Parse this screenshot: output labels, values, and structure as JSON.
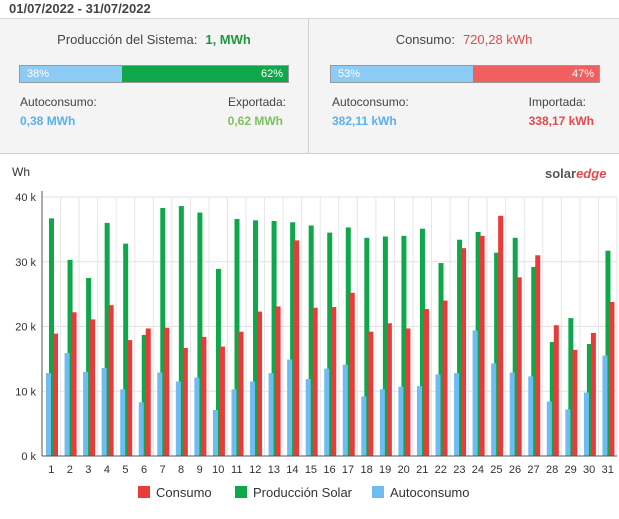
{
  "date_range": "01/07/2022 - 31/07/2022",
  "production": {
    "title": "Producción del Sistema:",
    "value": "1, MWh",
    "bar_left_label": "38%",
    "bar_right_label": "62%",
    "bar_left_fraction": 0.38,
    "left_label": "Autoconsumo:",
    "left_value": "0,38 MWh",
    "right_label": "Exportada:",
    "right_value": "0,62 MWh"
  },
  "consumption": {
    "title": "Consumo:",
    "value": "720,28 kWh",
    "bar_left_label": "53%",
    "bar_right_label": "47%",
    "bar_left_fraction": 0.53,
    "left_label": "Autoconsumo:",
    "left_value": "382,11 kWh",
    "right_label": "Importada:",
    "right_value": "338,17 kWh"
  },
  "logo": {
    "part1": "solar",
    "part2": "edge"
  },
  "colors": {
    "consumo": "#ea3a3a",
    "produccion": "#0ea84a",
    "autoconsumo": "#6fbcf3",
    "green_text": "#1a9a3a",
    "red_text": "#e34a4a",
    "blue_text": "#5ab0ef",
    "lightgreen_text": "#7dc060",
    "bar_blue": "#8ccbf5",
    "bar_red": "#f16060"
  },
  "chart_data": {
    "type": "bar",
    "ylabel": "Wh",
    "ylim": [
      0,
      40000
    ],
    "yticks": [
      "0 k",
      "10 k",
      "20 k",
      "30 k",
      "40 k"
    ],
    "categories": [
      "1",
      "2",
      "3",
      "4",
      "5",
      "6",
      "7",
      "8",
      "9",
      "10",
      "11",
      "12",
      "13",
      "14",
      "15",
      "16",
      "17",
      "18",
      "19",
      "20",
      "21",
      "22",
      "23",
      "24",
      "25",
      "26",
      "27",
      "28",
      "29",
      "30",
      "31"
    ],
    "series": [
      {
        "name": "Consumo",
        "values": [
          18900,
          22200,
          21100,
          23300,
          17900,
          19700,
          19800,
          16700,
          18400,
          16900,
          19200,
          22300,
          23100,
          33300,
          22900,
          23000,
          25200,
          19200,
          20500,
          19700,
          22700,
          24000,
          32100,
          34000,
          37100,
          27600,
          31000,
          20200,
          16400,
          19000,
          23800
        ]
      },
      {
        "name": "Producción Solar",
        "values": [
          36700,
          30300,
          27500,
          36000,
          32800,
          18700,
          38300,
          38600,
          37600,
          28900,
          36600,
          36400,
          36300,
          36100,
          35600,
          34500,
          35300,
          33700,
          33900,
          34000,
          35100,
          29800,
          33400,
          34600,
          31400,
          33700,
          29200,
          17600,
          21300,
          17300,
          31700
        ]
      },
      {
        "name": "Autoconsumo",
        "values": [
          12800,
          15900,
          13000,
          13600,
          10300,
          8300,
          12900,
          11500,
          12100,
          7100,
          10300,
          11500,
          12800,
          14900,
          11900,
          13500,
          14100,
          9200,
          10300,
          10700,
          10800,
          12600,
          12800,
          19400,
          14300,
          12900,
          12300,
          8400,
          7200,
          9800,
          15500
        ]
      }
    ],
    "legend": [
      "Consumo",
      "Producción Solar",
      "Autoconsumo"
    ],
    "legend_position": "bottom"
  }
}
